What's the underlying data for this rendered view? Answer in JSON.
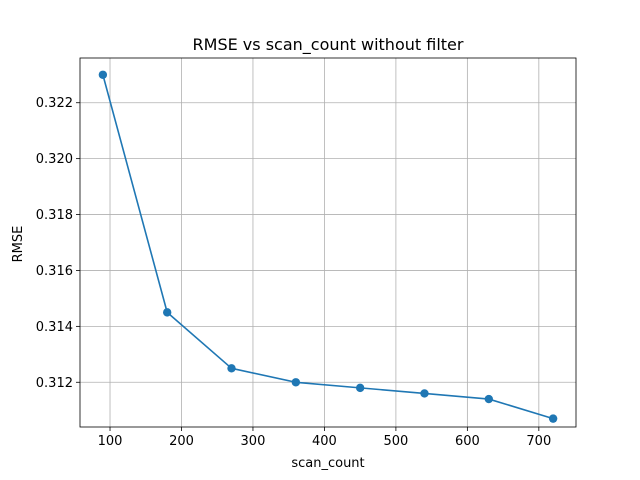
{
  "chart_data": {
    "type": "line",
    "title": "RMSE vs scan_count without filter",
    "xlabel": "scan_count",
    "ylabel": "RMSE",
    "xlim": [
      58,
      752
    ],
    "ylim": [
      0.3104,
      0.3236
    ],
    "xticks": [
      100,
      200,
      300,
      400,
      500,
      600,
      700
    ],
    "yticks": [
      0.312,
      0.314,
      0.316,
      0.318,
      0.32,
      0.322
    ],
    "ytick_labels": [
      "0.312",
      "0.314",
      "0.316",
      "0.318",
      "0.320",
      "0.322"
    ],
    "grid": true,
    "series": [
      {
        "color": "#1f77b4",
        "marker": "circle",
        "x": [
          90,
          180,
          270,
          360,
          450,
          540,
          630,
          720
        ],
        "y": [
          0.323,
          0.3145,
          0.3125,
          0.312,
          0.3118,
          0.3116,
          0.3114,
          0.3107
        ]
      }
    ]
  },
  "colors": {
    "grid": "#b0b0b0",
    "axes": "#000000",
    "background": "#ffffff"
  }
}
